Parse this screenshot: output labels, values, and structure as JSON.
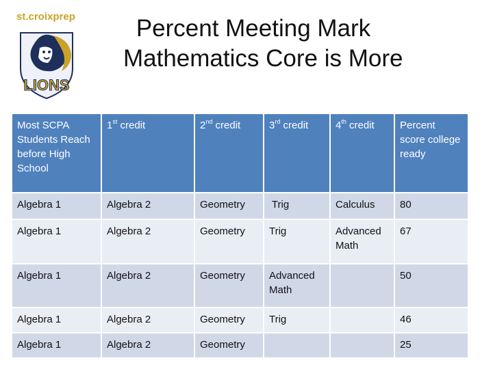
{
  "logo": {
    "brand_text_prefix": "st.croi",
    "brand_text_x": "x",
    "brand_text_suffix": "prep",
    "mascot_text": "LIONS",
    "colors": {
      "gold": "#c9a227",
      "navy": "#1f2f5c"
    }
  },
  "title": {
    "line1": "Percent Meeting Mark",
    "line2": "Mathematics Core is More"
  },
  "table": {
    "header": [
      {
        "main": "Most SCPA Students Reach before High School",
        "sup": "",
        "after": ""
      },
      {
        "main": "1",
        "sup": "st",
        "after": " credit"
      },
      {
        "main": "2",
        "sup": "nd",
        "after": " credit"
      },
      {
        "main": "3",
        "sup": "rd",
        "after": " credit"
      },
      {
        "main": "4",
        "sup": "th",
        "after": " credit"
      },
      {
        "main": "Percent score college ready",
        "sup": "",
        "after": ""
      }
    ],
    "rows": [
      [
        "Algebra 1",
        "Algebra 2",
        "Geometry",
        " Trig",
        "Calculus",
        "80"
      ],
      [
        "Algebra 1",
        "Algebra 2",
        "Geometry",
        "Trig",
        "Advanced Math",
        "67"
      ],
      [
        "Algebra 1",
        "Algebra 2",
        "Geometry",
        "Advanced Math",
        "",
        "50"
      ],
      [
        "Algebra 1",
        "Algebra 2",
        "Geometry",
        "Trig",
        "",
        "46"
      ],
      [
        "Algebra 1",
        "Algebra 2",
        "Geometry",
        "",
        "",
        "25"
      ]
    ],
    "colors": {
      "header_bg": "#4f81bd",
      "row_dark": "#d0d8e8",
      "row_light": "#e9edf4"
    }
  }
}
